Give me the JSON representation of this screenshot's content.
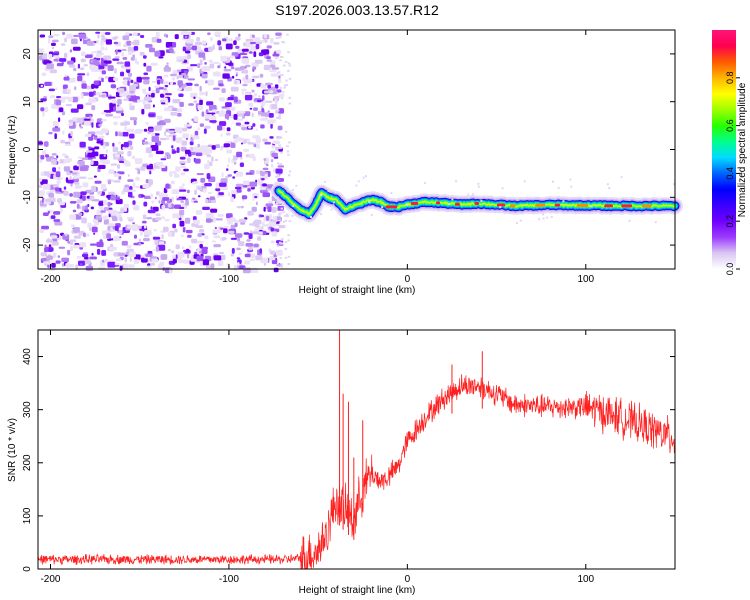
{
  "title": "S197.2026.003.13.57.R12",
  "chart_data": [
    {
      "type": "heatmap",
      "xlabel": "Height of straight line (km)",
      "ylabel": "Frequency (Hz)",
      "xlim": [
        -207,
        150
      ],
      "ylim": [
        -25,
        25
      ],
      "xticks": [
        -200,
        -100,
        0,
        100
      ],
      "yticks": [
        20,
        10,
        0,
        -10,
        -20
      ],
      "noise_region_x": [
        -207,
        -72
      ],
      "signal_track": {
        "x": [
          -72,
          -65,
          -60,
          -55,
          -52,
          -48,
          -45,
          -40,
          -35,
          -32,
          -28,
          -24,
          -20,
          -15,
          -10,
          -5,
          0,
          10,
          20,
          30,
          40,
          60,
          80,
          100,
          120,
          150
        ],
        "y": [
          -8.5,
          -11,
          -12.5,
          -13.5,
          -12,
          -9,
          -10,
          -10.5,
          -12.5,
          -12,
          -11.5,
          -11,
          -10.5,
          -11,
          -12,
          -12,
          -11.5,
          -11,
          -11.2,
          -11.5,
          -11.3,
          -11.8,
          -11.6,
          -11.7,
          -11.8,
          -11.8
        ]
      },
      "colorbar": {
        "label": "Normalized spectral amplitude",
        "range": [
          0,
          1
        ],
        "ticks": [
          "0.0",
          "0.2",
          "0.4",
          "0.6",
          "0.8"
        ],
        "colors": [
          "#ffffff",
          "#d9c6f2",
          "#9c3bff",
          "#6f00ff",
          "#3a00ff",
          "#0000ff",
          "#0064ff",
          "#00dcff",
          "#00ff8c",
          "#28ff00",
          "#a0ff00",
          "#ffff00",
          "#ffb400",
          "#ff5a00",
          "#ff0050",
          "#ff1478"
        ]
      }
    },
    {
      "type": "line",
      "xlabel": "Height of straight line (km)",
      "ylabel": "SNR (10 * v/v)",
      "xlim": [
        -207,
        150
      ],
      "ylim": [
        0,
        450
      ],
      "xticks": [
        -200,
        -100,
        0,
        100
      ],
      "yticks": [
        0,
        100,
        200,
        300,
        400
      ],
      "color": "#ff2020",
      "envelope": {
        "x": [
          -207,
          -150,
          -100,
          -70,
          -60,
          -50,
          -45,
          -40,
          -35,
          -30,
          -25,
          -20,
          -15,
          -10,
          -5,
          0,
          10,
          20,
          30,
          40,
          50,
          60,
          80,
          100,
          120,
          150
        ],
        "y": [
          18,
          18,
          18,
          18,
          20,
          35,
          70,
          130,
          110,
          95,
          150,
          180,
          165,
          175,
          195,
          240,
          285,
          320,
          345,
          345,
          330,
          310,
          305,
          305,
          285,
          245
        ]
      },
      "spikes": [
        {
          "x": -38,
          "y": 450
        },
        {
          "x": -36,
          "y": 330
        },
        {
          "x": -33,
          "y": 315
        },
        {
          "x": -30,
          "y": 210
        },
        {
          "x": -25,
          "y": 280
        },
        {
          "x": 25,
          "y": 385
        },
        {
          "x": 42,
          "y": 410
        }
      ]
    }
  ]
}
